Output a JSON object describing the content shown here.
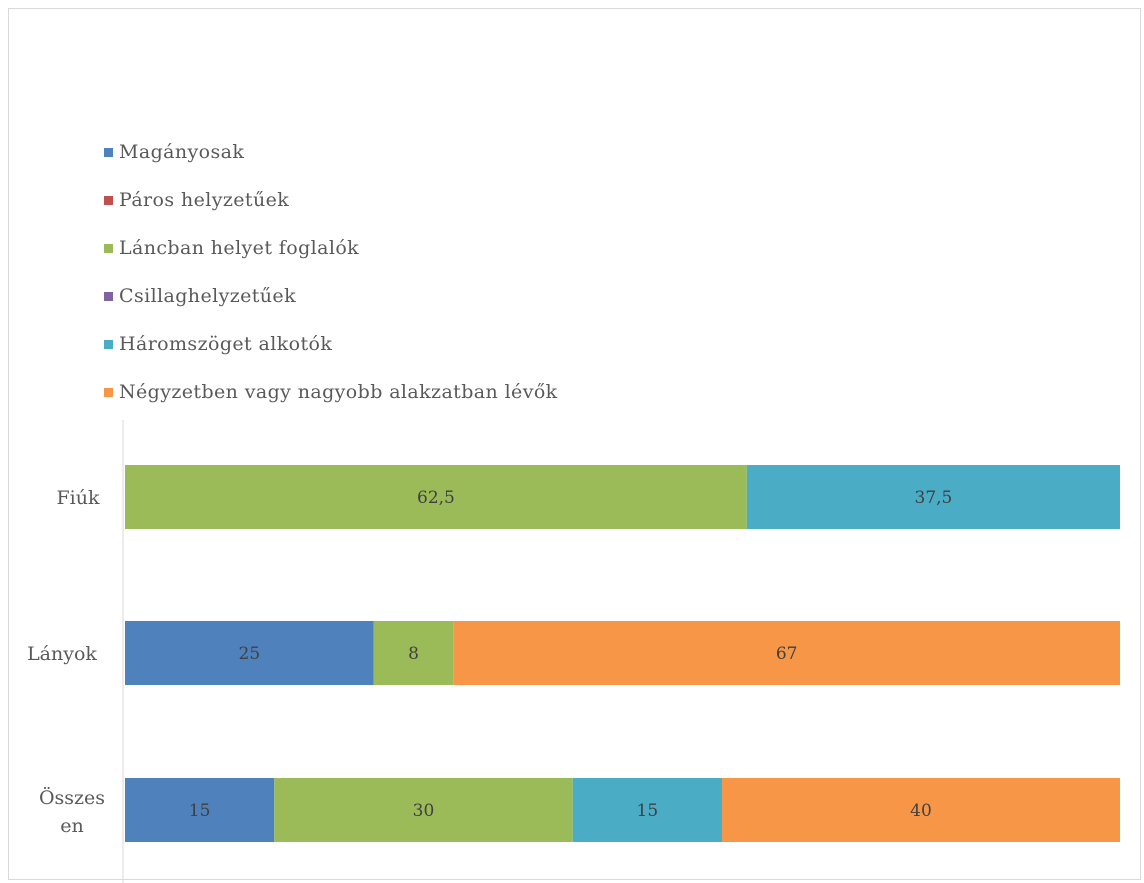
{
  "chart_data": {
    "type": "bar",
    "orientation": "horizontal",
    "stacked": true,
    "categories": [
      "Fiúk",
      "Lányok",
      "Összesen"
    ],
    "series": [
      {
        "name": "Magányosak",
        "color": "#4f81bd",
        "values": [
          0,
          25,
          15
        ]
      },
      {
        "name": "Páros helyzetűek",
        "color": "#c0504d",
        "values": [
          0,
          0,
          0
        ]
      },
      {
        "name": "Láncban helyet foglalók",
        "color": "#9bbb59",
        "values": [
          62.5,
          8,
          30
        ]
      },
      {
        "name": "Csillaghelyzetűek",
        "color": "#8064a2",
        "values": [
          0,
          0,
          0
        ]
      },
      {
        "name": "Háromszöget alkotók",
        "color": "#4bacc6",
        "values": [
          37.5,
          0,
          15
        ]
      },
      {
        "name": "Négyzetben vagy nagyobb alakzatban lévők",
        "color": "#f79646",
        "values": [
          0,
          67,
          40
        ]
      }
    ],
    "value_labels": [
      [
        "",
        "",
        "62,5",
        "",
        "37,5",
        ""
      ],
      [
        "25",
        "",
        "8",
        "",
        "",
        "67"
      ],
      [
        "15",
        "",
        "30",
        "",
        "15",
        "40"
      ]
    ],
    "xlim": [
      0,
      100
    ],
    "legend_position": "top-left",
    "grid": false
  }
}
